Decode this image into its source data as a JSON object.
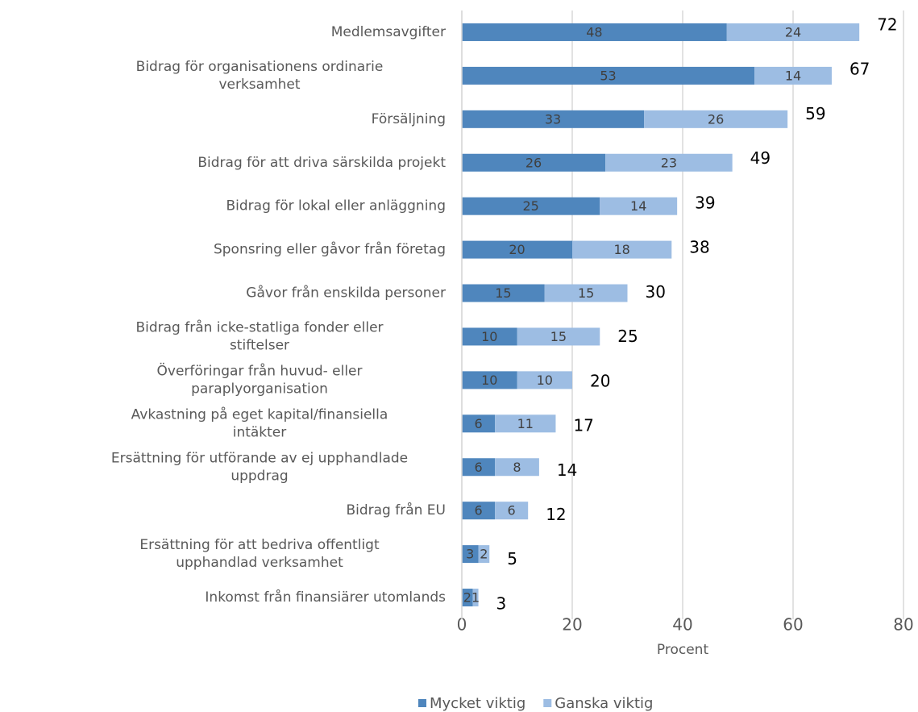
{
  "chart_data": {
    "type": "bar",
    "orientation": "horizontal",
    "stacked": true,
    "categories": [
      "Medlemsavgifter",
      "Bidrag för organisationens ordinarie verksamhet",
      "Försäljning",
      "Bidrag för att driva särskilda projekt",
      "Bidrag för lokal eller anläggning",
      "Sponsring eller gåvor från företag",
      "Gåvor från enskilda personer",
      "Bidrag från icke-statliga fonder eller stiftelser",
      "Överföringar från huvud- eller paraplyorganisation",
      "Avkastning på eget kapital/finansiella intäkter",
      "Ersättning för utförande av ej upphandlade uppdrag",
      "Bidrag från EU",
      "Ersättning för att bedriva offentligt upphandlad verksamhet",
      "Inkomst från finansiärer utomlands"
    ],
    "series": [
      {
        "name": "Mycket viktig",
        "color": "#4f86bd",
        "values": [
          48,
          53,
          33,
          26,
          25,
          20,
          15,
          10,
          10,
          6,
          6,
          6,
          3,
          2
        ]
      },
      {
        "name": "Ganska viktig",
        "color": "#9dbde3",
        "values": [
          24,
          14,
          26,
          23,
          14,
          18,
          15,
          15,
          10,
          11,
          8,
          6,
          2,
          1
        ]
      }
    ],
    "totals": [
      72,
      67,
      59,
      49,
      39,
      38,
      30,
      25,
      20,
      17,
      14,
      12,
      5,
      3
    ],
    "xlabel": "Procent",
    "xlim": [
      0,
      80
    ],
    "xticks": [
      0,
      20,
      40,
      60,
      80
    ],
    "grid": true,
    "legend": "bottom"
  }
}
